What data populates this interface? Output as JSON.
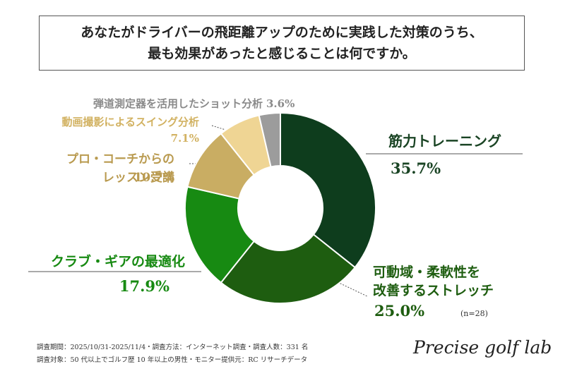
{
  "chart_data": {
    "type": "donut",
    "title": "あなたがドライバーの飛距離アップのために実践した対策のうち、\n最も効果があったと感じることは何ですか。",
    "categories": [
      "筋力トレーニング",
      "可動域・柔軟性を\n改善するストレッチ",
      "クラブ・ギアの最適化",
      "プロ・コーチからの\nレッスン受講",
      "動画撮影によるスイング分析",
      "弾道測定器を活用したショット分析"
    ],
    "values": [
      35.7,
      25.0,
      17.9,
      10.7,
      7.1,
      3.6
    ],
    "value_labels": [
      "35.7%",
      "25.0%",
      "17.9%",
      "10.7%",
      "7.1%",
      "3.6%"
    ],
    "colors": [
      "#0e3d1d",
      "#1e5d10",
      "#178a12",
      "#c9ad63",
      "#efd594",
      "#9c9c9c"
    ],
    "label_colors": [
      "#1a4424",
      "#1e5d10",
      "#178a12",
      "#b99a4f",
      "#d2b262",
      "#8a8a8a"
    ],
    "sample_size": "(n=28)",
    "notes": [
      "調査期間：2025/10/31-2025/11/4・調査方法：インターネット調査・調査人数：331 名",
      "調査対象：50 代以上でゴルフ歴 10 年以上の男性・モニター提供元：RC リサーチデータ"
    ],
    "logo": "Precise golf lab"
  }
}
